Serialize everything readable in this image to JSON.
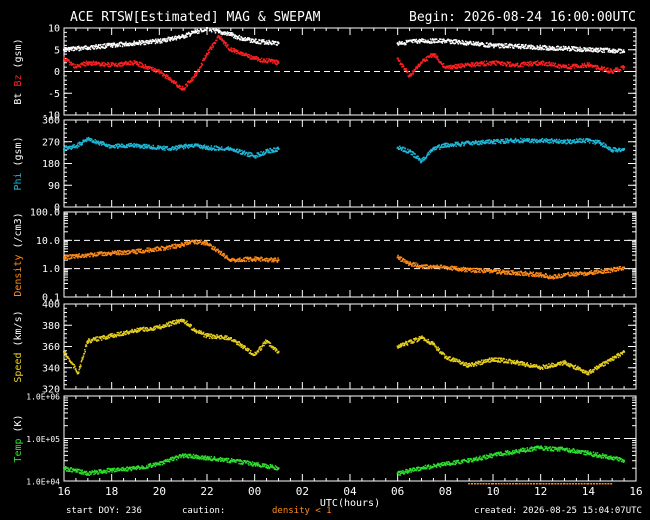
{
  "title_left": "ACE RTSW[Estimated] MAG & SWEPAM",
  "title_right": "Begin: 2026-08-24 16:00:00UTC",
  "footer": {
    "start_doy": "start DOY: 236",
    "caution": "caution:",
    "density_note": "density < 1",
    "created": "created: 2026-08-25 15:04:07UTC"
  },
  "colors": {
    "bt": "#ffffff",
    "bz": "#ff2020",
    "phi": "#20b8d8",
    "density": "#ff8c1a",
    "speed": "#e8d020",
    "temp": "#30e030",
    "axis": "#ffffff"
  },
  "chart_data": {
    "type": "scatter",
    "xlabel": "UTC(hours)",
    "x_ticks": [
      "16",
      "18",
      "20",
      "22",
      "00",
      "02",
      "04",
      "06",
      "08",
      "10",
      "12",
      "14",
      "16"
    ],
    "x_range_hours": [
      0,
      24
    ],
    "data_gap_hours": [
      9.2,
      13.8
    ],
    "panels": [
      {
        "id": "mag",
        "ylabel_parts": [
          {
            "text": "Bt",
            "color": "#ffffff"
          },
          {
            "text": "Bz",
            "color": "#ff2020"
          },
          {
            "text": "(gsm)",
            "color": "#ffffff"
          }
        ],
        "scale": "linear",
        "ylim": [
          -10,
          10
        ],
        "yticks": [
          10,
          5,
          0,
          -5,
          -10
        ],
        "ref_lines": [
          0
        ],
        "series": [
          {
            "name": "Bt",
            "color": "#ffffff",
            "x": [
              0,
              1,
              2,
              3,
              4,
              4.5,
              5,
              5.5,
              6,
              6.5,
              7,
              7.5,
              8,
              9,
              14,
              15,
              16,
              17,
              18,
              19,
              20,
              21,
              22,
              23,
              23.5
            ],
            "y": [
              5,
              5.5,
              6,
              6.5,
              7,
              7.5,
              8,
              9,
              10,
              9,
              8.5,
              7.5,
              7,
              6.5,
              6.5,
              7,
              7,
              6.5,
              6,
              5.8,
              5.5,
              5.3,
              5,
              4.8,
              4.5
            ]
          },
          {
            "name": "Bz",
            "color": "#ff2020",
            "x": [
              0,
              0.5,
              1,
              2,
              3,
              3.5,
              4,
              4.5,
              5,
              5.5,
              6,
              6.5,
              7,
              8,
              9,
              14,
              14.5,
              15,
              15.5,
              16,
              17,
              18,
              19,
              20,
              21,
              22,
              23,
              23.5
            ],
            "y": [
              3,
              1,
              2,
              1.5,
              2,
              1,
              0,
              -2,
              -4,
              -1,
              4,
              8,
              5,
              3,
              2,
              3,
              -1,
              2,
              4,
              1,
              1.5,
              2,
              1.5,
              2,
              1,
              1.5,
              0,
              1
            ]
          }
        ]
      },
      {
        "id": "phi",
        "ylabel_parts": [
          {
            "text": "Phi",
            "color": "#20b8d8"
          },
          {
            "text": "(gsm)",
            "color": "#ffffff"
          }
        ],
        "scale": "linear",
        "ylim": [
          0,
          360
        ],
        "yticks": [
          360,
          270,
          180,
          90,
          0
        ],
        "ref_lines": [],
        "series": [
          {
            "name": "Phi",
            "color": "#20b8d8",
            "x": [
              0,
              0.5,
              1,
              2,
              3,
              4,
              4.5,
              5,
              5.5,
              6,
              7,
              7.5,
              8,
              8.5,
              9,
              14,
              14.5,
              15,
              15.5,
              16,
              17,
              18,
              19,
              20,
              21,
              22,
              22.5,
              23,
              23.5
            ],
            "y": [
              240,
              250,
              280,
              250,
              255,
              245,
              240,
              250,
              255,
              245,
              240,
              225,
              210,
              230,
              240,
              245,
              230,
              190,
              240,
              255,
              265,
              270,
              275,
              275,
              270,
              275,
              265,
              235,
              240
            ]
          }
        ]
      },
      {
        "id": "density",
        "ylabel_parts": [
          {
            "text": "Density",
            "color": "#ff8c1a"
          },
          {
            "text": "(/cm3)",
            "color": "#ffffff"
          }
        ],
        "scale": "log",
        "ylim": [
          0.1,
          100
        ],
        "ytick_values": [
          100,
          10,
          1,
          0.1
        ],
        "yticks": [
          "100.0",
          "10.0",
          "1.0",
          "0.1"
        ],
        "ref_lines": [
          10,
          1
        ],
        "series": [
          {
            "name": "Density",
            "color": "#ff8c1a",
            "x": [
              0,
              1,
              2,
              3,
              4,
              5,
              5.5,
              6,
              6.5,
              7,
              8,
              9,
              14,
              14.5,
              15,
              16,
              17,
              18,
              19,
              20,
              20.5,
              21,
              22,
              23,
              23.5
            ],
            "y": [
              2.5,
              3,
              3.5,
              4,
              5,
              7,
              9,
              8,
              4,
              2,
              2.2,
              2,
              2.5,
              1.5,
              1.2,
              1.1,
              0.9,
              0.8,
              0.7,
              0.6,
              0.5,
              0.6,
              0.7,
              0.9,
              1.1
            ]
          }
        ]
      },
      {
        "id": "speed",
        "ylabel_parts": [
          {
            "text": "Speed",
            "color": "#e8d020"
          },
          {
            "text": "(km/s)",
            "color": "#ffffff"
          }
        ],
        "scale": "linear",
        "ylim": [
          320,
          400
        ],
        "yticks": [
          400,
          380,
          360,
          340,
          320
        ],
        "ref_lines": [],
        "series": [
          {
            "name": "Speed",
            "color": "#e8d020",
            "x": [
              0,
              0.3,
              0.6,
              1,
              2,
              3,
              4,
              5,
              5.5,
              6,
              7,
              8,
              8.5,
              9,
              14,
              15,
              15.5,
              16,
              17,
              18,
              19,
              20,
              21,
              22,
              23,
              23.5
            ],
            "y": [
              355,
              345,
              335,
              365,
              370,
              375,
              378,
              385,
              375,
              370,
              368,
              352,
              365,
              355,
              360,
              368,
              362,
              350,
              342,
              348,
              345,
              340,
              345,
              335,
              348,
              355
            ]
          }
        ]
      },
      {
        "id": "temp",
        "ylabel_parts": [
          {
            "text": "Temp",
            "color": "#30e030"
          },
          {
            "text": "(K)",
            "color": "#ffffff"
          }
        ],
        "scale": "log",
        "ylim": [
          10000,
          1000000
        ],
        "ytick_values": [
          1000000,
          100000,
          10000
        ],
        "yticks": [
          "1.0E+06",
          "1.0E+05",
          "1.0E+04"
        ],
        "ref_lines": [
          100000
        ],
        "series": [
          {
            "name": "Temp",
            "color": "#30e030",
            "x": [
              0,
              1,
              2,
              3,
              4,
              5,
              6,
              7,
              8,
              9,
              14,
              15,
              16,
              17,
              18,
              19,
              20,
              21,
              22,
              23,
              23.5
            ],
            "y": [
              20000,
              15000,
              18000,
              20000,
              25000,
              40000,
              35000,
              30000,
              25000,
              20000,
              15000,
              20000,
              25000,
              30000,
              40000,
              50000,
              60000,
              55000,
              45000,
              35000,
              30000
            ]
          }
        ]
      }
    ]
  }
}
